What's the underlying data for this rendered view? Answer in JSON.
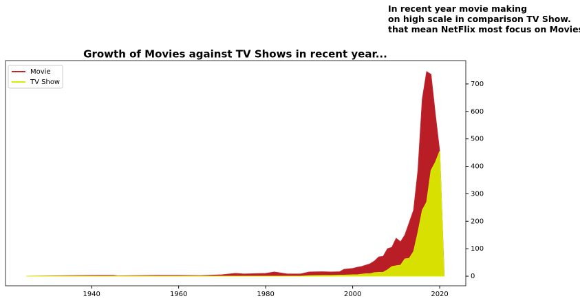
{
  "chart_data": {
    "type": "area",
    "title": "Growth of Movies against TV Shows in recent year...",
    "annotation": [
      "In recent year movie making",
      "on high scale in comparison TV Show.",
      "that mean NetFlix most focus on Movies"
    ],
    "x": [
      1925,
      1942,
      1945,
      1946,
      1955,
      1960,
      1965,
      1970,
      1973,
      1975,
      1980,
      1982,
      1985,
      1988,
      1990,
      1993,
      1995,
      1997,
      1998,
      2000,
      2001,
      2002,
      2003,
      2004,
      2005,
      2006,
      2007,
      2008,
      2009,
      2010,
      2011,
      2012,
      2013,
      2014,
      2015,
      2016,
      2017,
      2018,
      2019,
      2020,
      2021
    ],
    "series": [
      {
        "name": "Movie",
        "color": "#b5121b",
        "line_color": "#c0282d",
        "values": [
          0,
          3,
          3,
          1,
          3,
          3,
          2,
          5,
          10,
          8,
          10,
          15,
          8,
          8,
          15,
          16,
          15,
          16,
          25,
          28,
          32,
          35,
          40,
          45,
          55,
          70,
          72,
          100,
          105,
          138,
          125,
          150,
          195,
          240,
          385,
          645,
          745,
          735,
          590,
          455,
          12
        ]
      },
      {
        "name": "TV Show",
        "color": "#d9eb00",
        "line_color": "#d9eb00",
        "values": [
          0,
          0,
          0,
          0,
          0,
          0,
          0,
          0,
          0,
          0,
          0,
          0,
          0,
          0,
          2,
          3,
          3,
          4,
          4,
          5,
          5,
          7,
          9,
          9,
          13,
          14,
          14,
          23,
          35,
          38,
          40,
          63,
          65,
          90,
          160,
          240,
          270,
          385,
          415,
          455,
          0
        ]
      }
    ],
    "xlim": [
      1920.2,
      2026
    ],
    "ylim": [
      -35,
      785
    ],
    "xticks": [
      1940,
      1960,
      1980,
      2000,
      2020
    ],
    "yticks": [
      0,
      100,
      200,
      300,
      400,
      500,
      600,
      700
    ],
    "yaxis_side": "right",
    "legend": "upper left",
    "grid": false
  }
}
